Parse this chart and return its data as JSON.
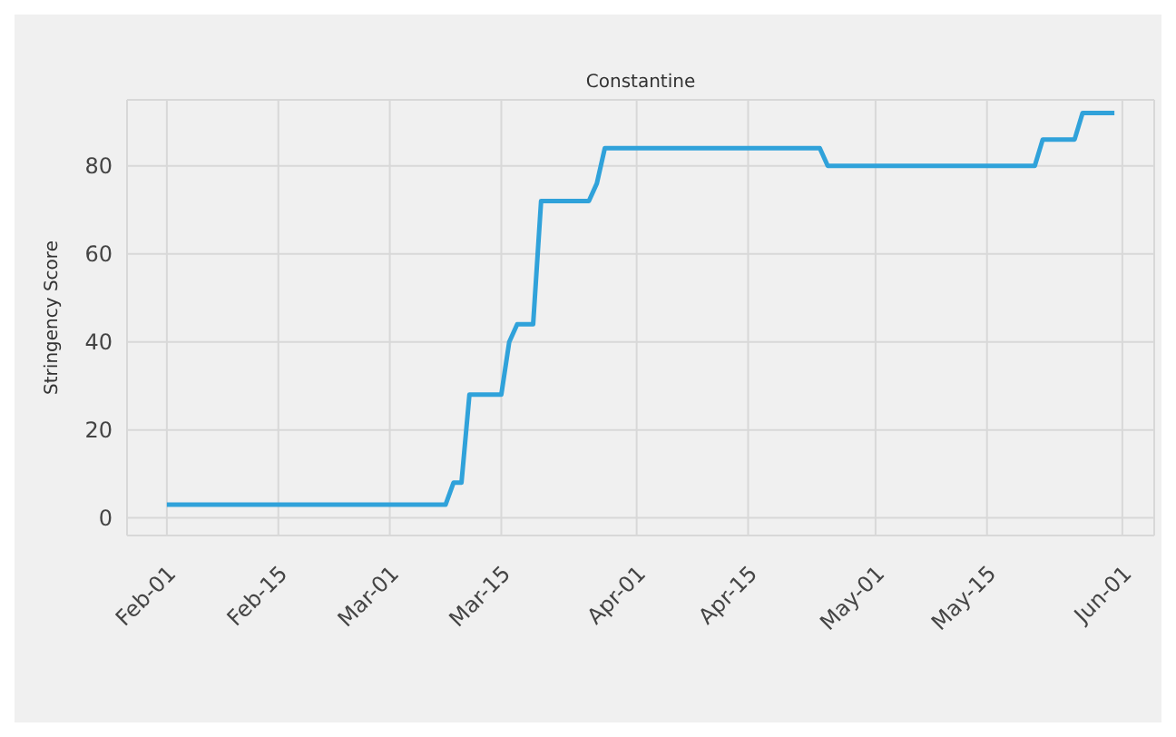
{
  "chart_data": {
    "type": "line",
    "title": "Constantine",
    "ylabel": "Stringency Score",
    "x": [
      "--02-01",
      "--03-08",
      "--03-09",
      "--03-10",
      "--03-11",
      "--03-15",
      "--03-16",
      "--03-17",
      "--03-19",
      "--03-20",
      "--03-26",
      "--03-27",
      "--03-28",
      "--04-24",
      "--04-25",
      "--05-21",
      "--05-22",
      "--05-26",
      "--05-27",
      "--05-31"
    ],
    "series": [
      {
        "color": "#30a2da",
        "values": [
          3,
          3,
          8,
          8,
          28,
          28,
          40,
          44,
          44,
          72,
          72,
          76,
          84,
          84,
          80,
          80,
          86,
          86,
          92,
          92
        ]
      }
    ],
    "xlim": [
      "--01-27",
      "--06-05"
    ],
    "xticks": [
      {
        "value": "--02-01",
        "label": "Feb-01"
      },
      {
        "value": "--02-15",
        "label": "Feb-15"
      },
      {
        "value": "--03-01",
        "label": "Mar-01"
      },
      {
        "value": "--03-15",
        "label": "Mar-15"
      },
      {
        "value": "--04-01",
        "label": "Apr-01"
      },
      {
        "value": "--04-15",
        "label": "Apr-15"
      },
      {
        "value": "--05-01",
        "label": "May-01"
      },
      {
        "value": "--05-15",
        "label": "May-15"
      },
      {
        "value": "--06-01",
        "label": "Jun-01"
      }
    ],
    "ylim": [
      -4,
      95
    ],
    "yticks": [
      0,
      20,
      40,
      60,
      80
    ],
    "grid": true,
    "marker": "none",
    "line_style": "solid"
  }
}
